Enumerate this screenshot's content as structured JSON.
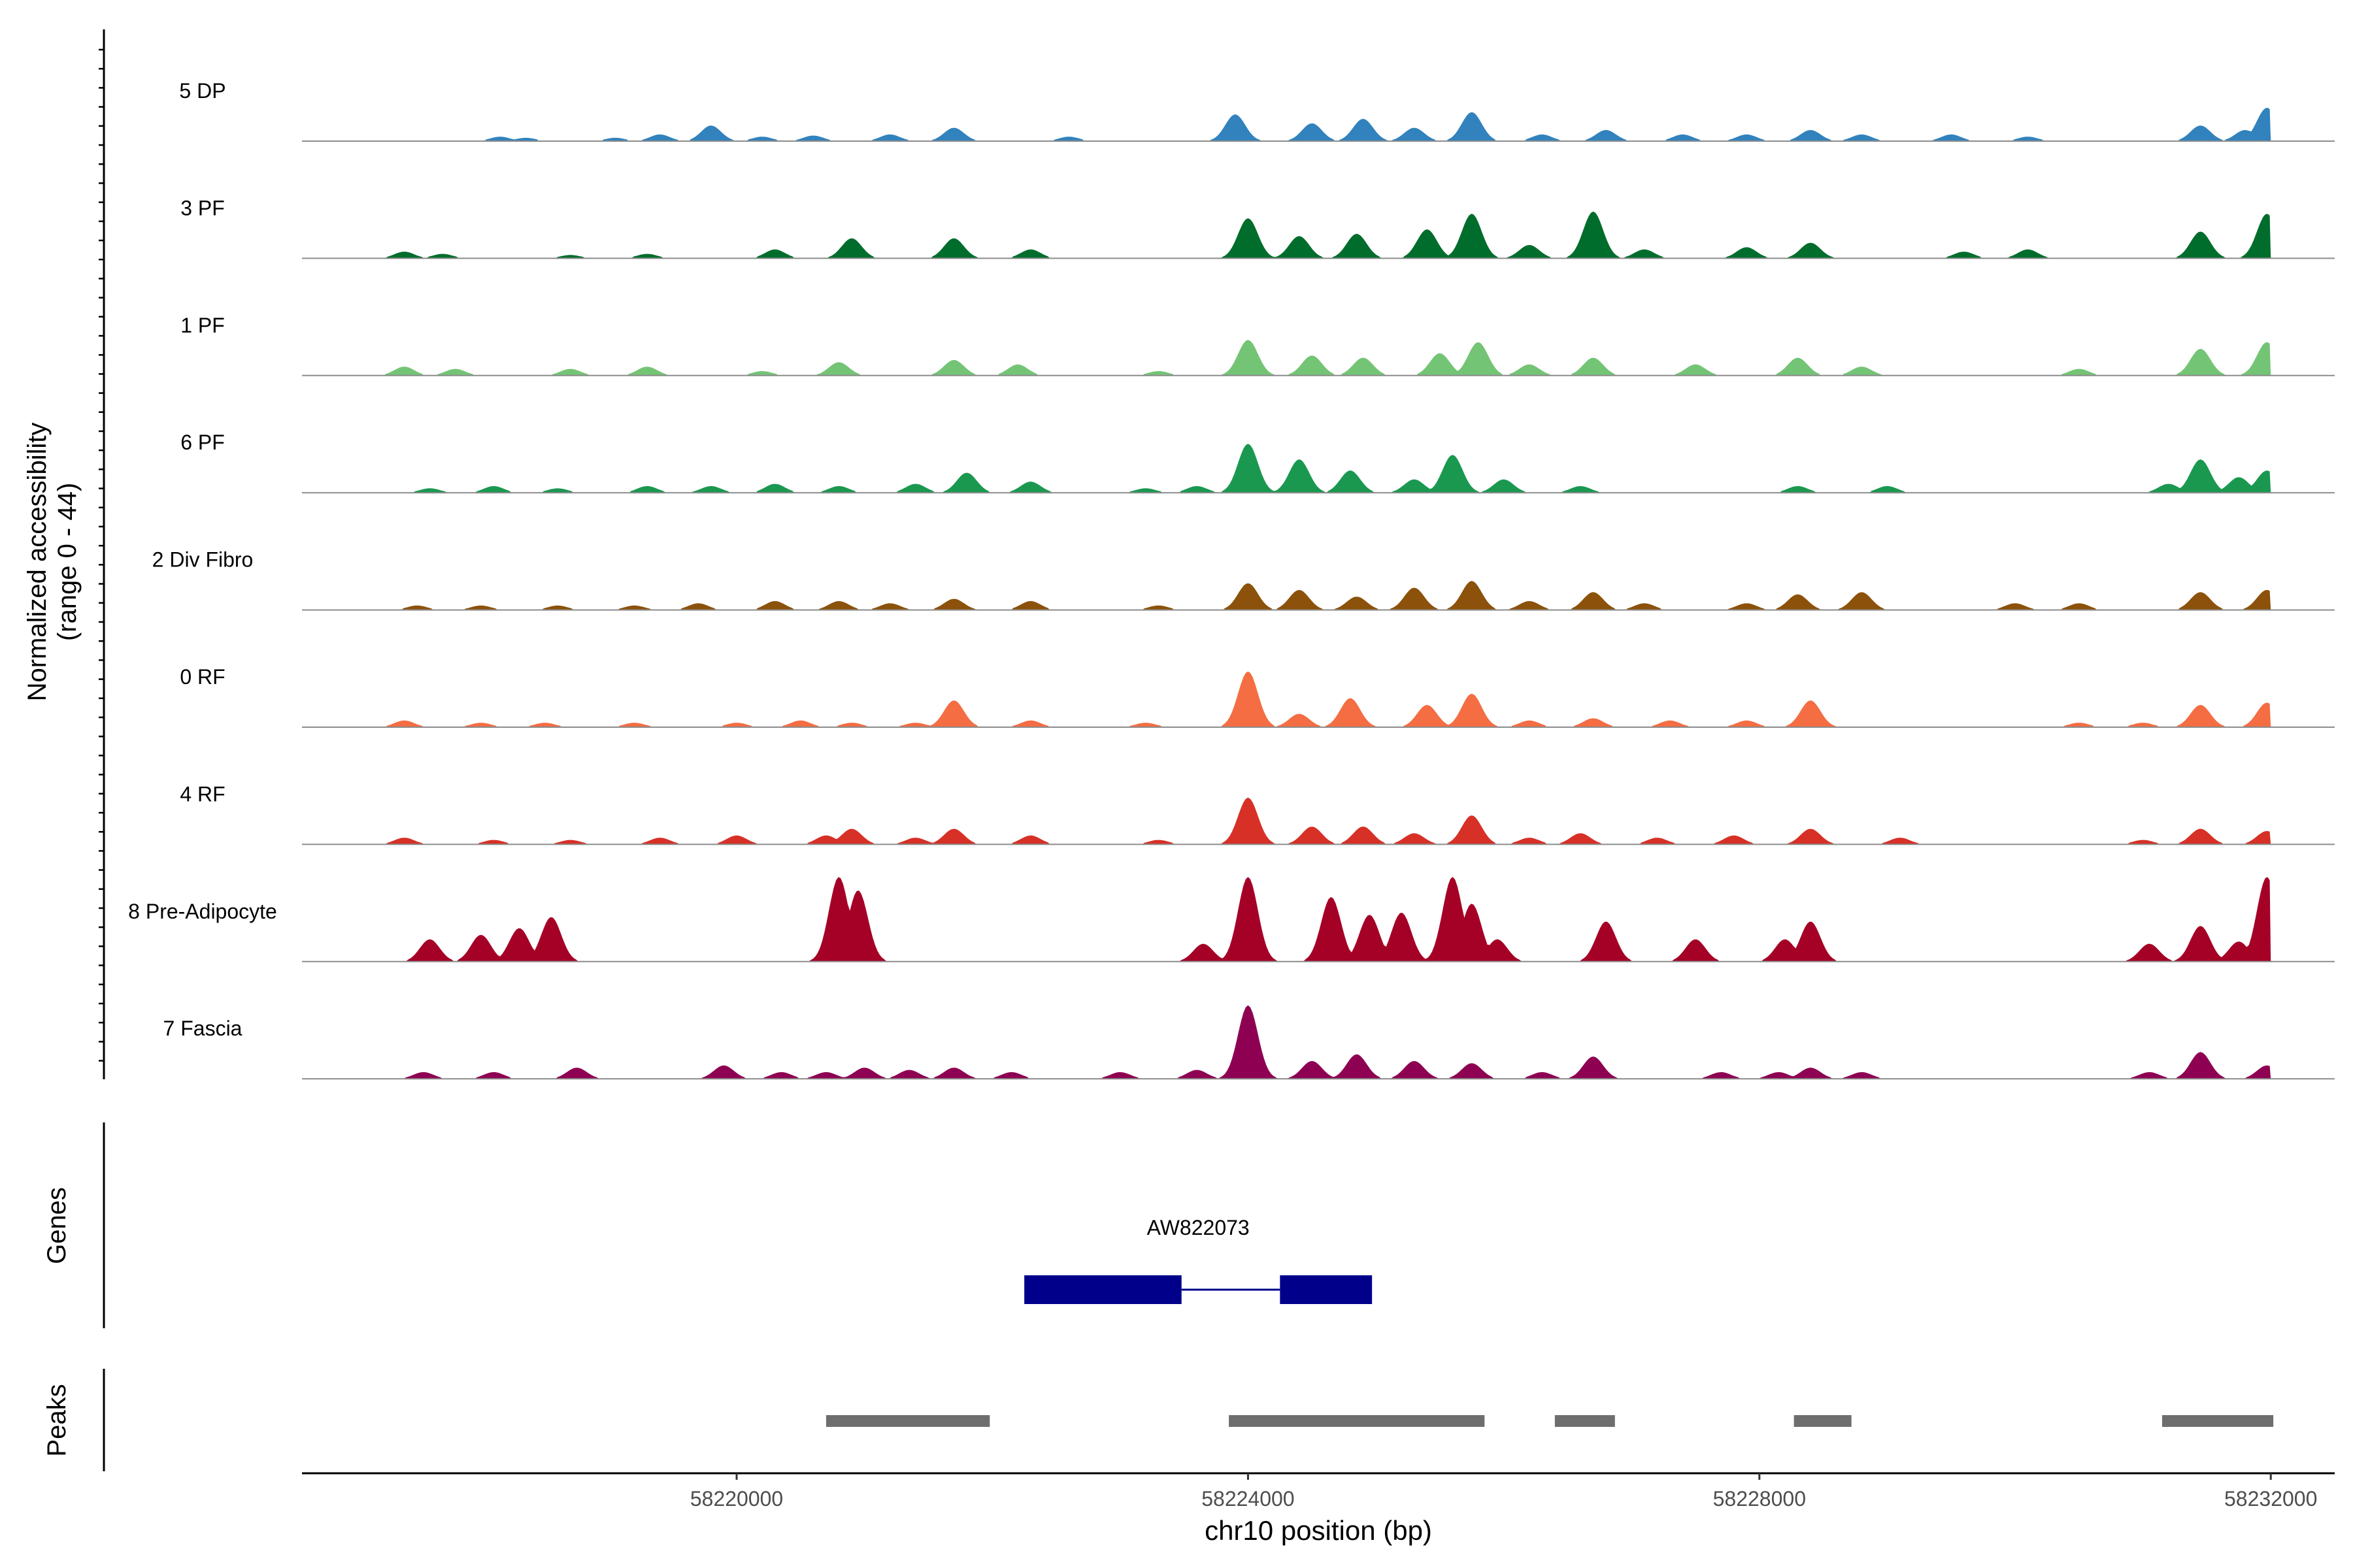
{
  "chart_data": {
    "type": "area",
    "title": "",
    "y_axis_label_line1": "Normalized accessibility",
    "y_axis_label_line2": "(range 0 - 44)",
    "ylim": [
      0,
      44
    ],
    "xlabel": "chr10 position (bp)",
    "xlim": [
      58216600,
      58232500
    ],
    "x_ticks": [
      "58220000",
      "58224000",
      "58228000",
      "58232000"
    ],
    "x_tick_values": [
      58220000,
      58224000,
      58228000,
      58232000
    ],
    "tracks": [
      {
        "name": "5 DP",
        "color": "#3182bd",
        "peaks": [
          [
            58218150,
            2
          ],
          [
            58218350,
            1.5
          ],
          [
            58219050,
            1.5
          ],
          [
            58219400,
            3
          ],
          [
            58219800,
            7
          ],
          [
            58220200,
            2
          ],
          [
            58220600,
            2.5
          ],
          [
            58221200,
            3
          ],
          [
            58221700,
            6
          ],
          [
            58222600,
            2
          ],
          [
            58223900,
            12
          ],
          [
            58224500,
            8
          ],
          [
            58224900,
            10
          ],
          [
            58225300,
            6
          ],
          [
            58225750,
            13
          ],
          [
            58226300,
            3
          ],
          [
            58226800,
            5
          ],
          [
            58227400,
            3
          ],
          [
            58227900,
            3
          ],
          [
            58228400,
            5
          ],
          [
            58228800,
            3
          ],
          [
            58229500,
            3
          ],
          [
            58230100,
            2
          ],
          [
            58231450,
            7
          ],
          [
            58231800,
            5
          ],
          [
            58231970,
            15
          ]
        ]
      },
      {
        "name": "3 PF",
        "color": "#006d2c",
        "peaks": [
          [
            58217400,
            3
          ],
          [
            58217700,
            2
          ],
          [
            58218700,
            1.5
          ],
          [
            58219300,
            2
          ],
          [
            58220300,
            4
          ],
          [
            58220900,
            9
          ],
          [
            58221700,
            9
          ],
          [
            58222300,
            4
          ],
          [
            58224000,
            18
          ],
          [
            58224400,
            10
          ],
          [
            58224850,
            11
          ],
          [
            58225400,
            13
          ],
          [
            58225750,
            20
          ],
          [
            58226200,
            6
          ],
          [
            58226700,
            21
          ],
          [
            58227100,
            4
          ],
          [
            58227900,
            5
          ],
          [
            58228400,
            7
          ],
          [
            58229600,
            3
          ],
          [
            58230100,
            4
          ],
          [
            58231450,
            12
          ],
          [
            58231970,
            20
          ]
        ]
      },
      {
        "name": "1 PF",
        "color": "#74c476",
        "peaks": [
          [
            58217400,
            4
          ],
          [
            58217800,
            3
          ],
          [
            58218700,
            3
          ],
          [
            58219300,
            4
          ],
          [
            58220200,
            2
          ],
          [
            58220800,
            6
          ],
          [
            58221700,
            7
          ],
          [
            58222200,
            5
          ],
          [
            58223300,
            2
          ],
          [
            58224000,
            16
          ],
          [
            58224500,
            9
          ],
          [
            58224900,
            8
          ],
          [
            58225500,
            10
          ],
          [
            58225800,
            15
          ],
          [
            58226200,
            5
          ],
          [
            58226700,
            8
          ],
          [
            58227500,
            5
          ],
          [
            58228300,
            8
          ],
          [
            58228800,
            4
          ],
          [
            58230500,
            3
          ],
          [
            58231450,
            12
          ],
          [
            58231970,
            15
          ]
        ]
      },
      {
        "name": "6 PF",
        "color": "#1a9850",
        "peaks": [
          [
            58217600,
            2
          ],
          [
            58218100,
            3
          ],
          [
            58218600,
            2
          ],
          [
            58219300,
            3
          ],
          [
            58219800,
            3
          ],
          [
            58220300,
            4
          ],
          [
            58220800,
            3
          ],
          [
            58221400,
            4
          ],
          [
            58221800,
            9
          ],
          [
            58222300,
            5
          ],
          [
            58223200,
            2
          ],
          [
            58223600,
            3
          ],
          [
            58224000,
            22
          ],
          [
            58224400,
            15
          ],
          [
            58224800,
            10
          ],
          [
            58225300,
            6
          ],
          [
            58225600,
            17
          ],
          [
            58226000,
            6
          ],
          [
            58226600,
            3
          ],
          [
            58228300,
            3
          ],
          [
            58229000,
            3
          ],
          [
            58231200,
            4
          ],
          [
            58231450,
            15
          ],
          [
            58231750,
            7
          ],
          [
            58231970,
            10
          ]
        ]
      },
      {
        "name": "2 Div Fibro",
        "color": "#8c510a",
        "peaks": [
          [
            58217500,
            2
          ],
          [
            58218000,
            2
          ],
          [
            58218600,
            2
          ],
          [
            58219200,
            2
          ],
          [
            58219700,
            3
          ],
          [
            58220300,
            4
          ],
          [
            58220800,
            4
          ],
          [
            58221200,
            3
          ],
          [
            58221700,
            5
          ],
          [
            58222300,
            4
          ],
          [
            58223300,
            2
          ],
          [
            58224000,
            12
          ],
          [
            58224400,
            9
          ],
          [
            58224850,
            6
          ],
          [
            58225300,
            10
          ],
          [
            58225750,
            13
          ],
          [
            58226200,
            4
          ],
          [
            58226700,
            8
          ],
          [
            58227100,
            3
          ],
          [
            58227900,
            3
          ],
          [
            58228300,
            7
          ],
          [
            58228800,
            8
          ],
          [
            58230000,
            3
          ],
          [
            58230500,
            3
          ],
          [
            58231450,
            8
          ],
          [
            58231970,
            9
          ]
        ]
      },
      {
        "name": "0 RF",
        "color": "#f46d43",
        "peaks": [
          [
            58217400,
            3
          ],
          [
            58218000,
            2
          ],
          [
            58218500,
            2
          ],
          [
            58219200,
            2
          ],
          [
            58220000,
            2
          ],
          [
            58220500,
            3
          ],
          [
            58220900,
            2
          ],
          [
            58221400,
            2
          ],
          [
            58221700,
            12
          ],
          [
            58222300,
            3
          ],
          [
            58223200,
            2
          ],
          [
            58224000,
            25
          ],
          [
            58224400,
            6
          ],
          [
            58224800,
            13
          ],
          [
            58225400,
            10
          ],
          [
            58225750,
            15
          ],
          [
            58226200,
            3
          ],
          [
            58226700,
            4
          ],
          [
            58227300,
            3
          ],
          [
            58227900,
            3
          ],
          [
            58228400,
            12
          ],
          [
            58230500,
            2
          ],
          [
            58231000,
            2
          ],
          [
            58231450,
            10
          ],
          [
            58231970,
            11
          ]
        ]
      },
      {
        "name": "4 RF",
        "color": "#d73027",
        "peaks": [
          [
            58217400,
            3
          ],
          [
            58218100,
            2
          ],
          [
            58218700,
            2
          ],
          [
            58219400,
            3
          ],
          [
            58220000,
            4
          ],
          [
            58220700,
            4
          ],
          [
            58220900,
            7
          ],
          [
            58221400,
            3
          ],
          [
            58221700,
            7
          ],
          [
            58222300,
            4
          ],
          [
            58223300,
            2
          ],
          [
            58224000,
            21
          ],
          [
            58224500,
            8
          ],
          [
            58224900,
            8
          ],
          [
            58225300,
            5
          ],
          [
            58225750,
            13
          ],
          [
            58226200,
            3
          ],
          [
            58226600,
            5
          ],
          [
            58227200,
            3
          ],
          [
            58227800,
            4
          ],
          [
            58228400,
            7
          ],
          [
            58229100,
            3
          ],
          [
            58231000,
            2
          ],
          [
            58231450,
            7
          ],
          [
            58231970,
            6
          ]
        ]
      },
      {
        "name": "8 Pre-Adipocyte",
        "color": "#a50026",
        "peaks": [
          [
            58217600,
            10
          ],
          [
            58218000,
            12
          ],
          [
            58218300,
            15
          ],
          [
            58218550,
            20
          ],
          [
            58220800,
            38
          ],
          [
            58220950,
            32
          ],
          [
            58224000,
            38
          ],
          [
            58223650,
            8
          ],
          [
            58224650,
            29
          ],
          [
            58224950,
            21
          ],
          [
            58225200,
            22
          ],
          [
            58225600,
            38
          ],
          [
            58225750,
            26
          ],
          [
            58225950,
            10
          ],
          [
            58226800,
            18
          ],
          [
            58227500,
            10
          ],
          [
            58228200,
            10
          ],
          [
            58228400,
            18
          ],
          [
            58231050,
            8
          ],
          [
            58231450,
            16
          ],
          [
            58231750,
            9
          ],
          [
            58231970,
            38
          ]
        ]
      },
      {
        "name": "7 Fascia",
        "color": "#8e0152",
        "peaks": [
          [
            58217550,
            3
          ],
          [
            58218100,
            3
          ],
          [
            58218750,
            5
          ],
          [
            58219900,
            6
          ],
          [
            58220350,
            3
          ],
          [
            58220700,
            3
          ],
          [
            58221000,
            5
          ],
          [
            58221350,
            4
          ],
          [
            58221700,
            5
          ],
          [
            58222150,
            3
          ],
          [
            58223000,
            3
          ],
          [
            58223600,
            4
          ],
          [
            58224000,
            33
          ],
          [
            58224500,
            8
          ],
          [
            58224850,
            11
          ],
          [
            58225300,
            8
          ],
          [
            58225750,
            7
          ],
          [
            58226300,
            3
          ],
          [
            58226700,
            10
          ],
          [
            58227700,
            3
          ],
          [
            58228150,
            3
          ],
          [
            58228400,
            5
          ],
          [
            58228800,
            3
          ],
          [
            58231050,
            3
          ],
          [
            58231450,
            12
          ],
          [
            58231970,
            6
          ]
        ]
      }
    ],
    "genes_label": "Genes",
    "gene": {
      "name": "AW822073",
      "exons": [
        [
          58222250,
          58223480
        ],
        [
          58224250,
          58224970
        ]
      ],
      "intron": [
        58223480,
        58224250
      ]
    },
    "peaks_label": "Peaks",
    "peak_regions": [
      [
        58220700,
        58221980
      ],
      [
        58223850,
        58225850
      ],
      [
        58226400,
        58226870
      ],
      [
        58228270,
        58228720
      ],
      [
        58231150,
        58232020
      ]
    ]
  }
}
